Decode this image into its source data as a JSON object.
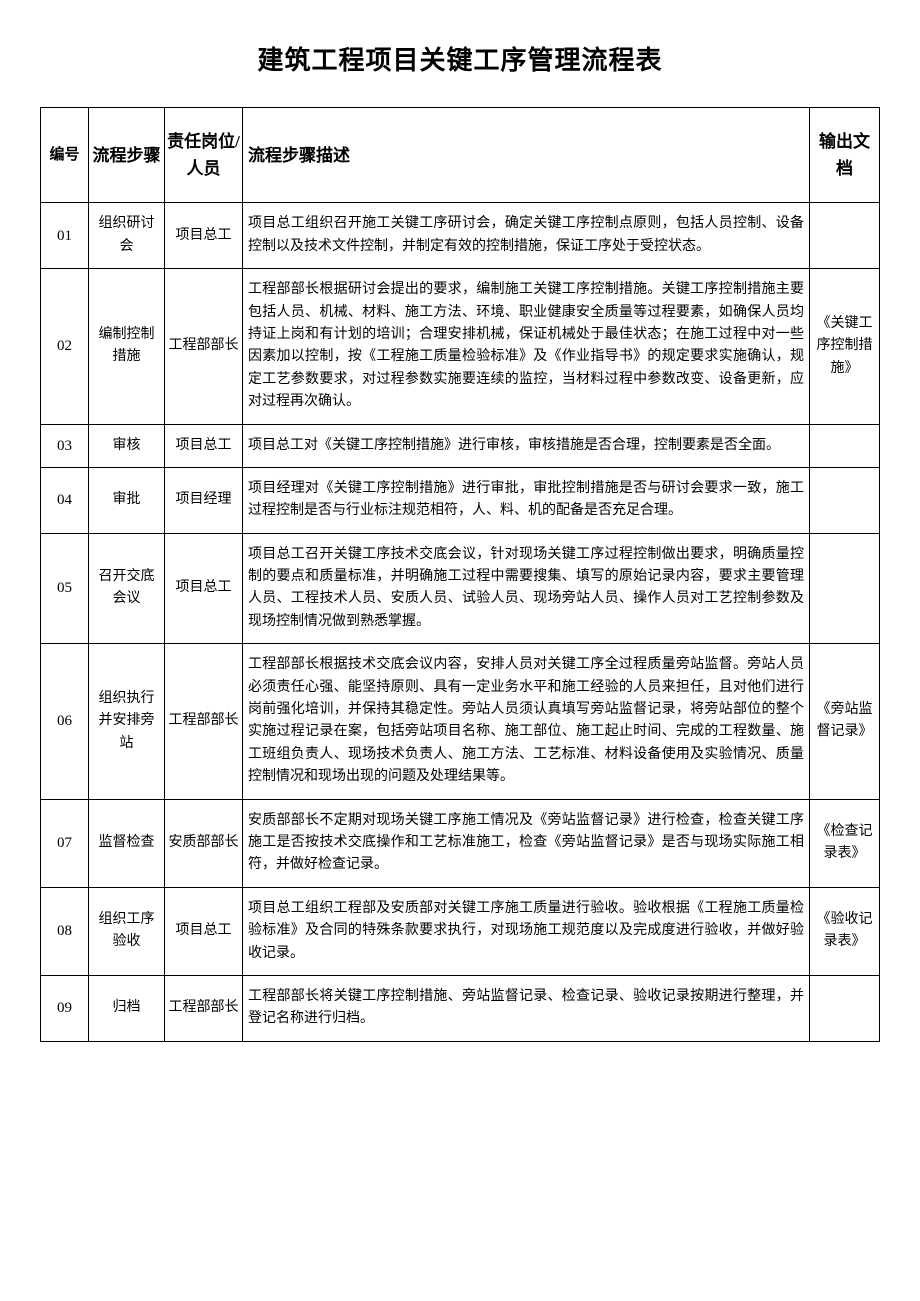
{
  "title": "建筑工程项目关键工序管理流程表",
  "columns": {
    "num": "编号",
    "step": "流程步骤",
    "role": "责任岗位/人员",
    "desc": "流程步骤描述",
    "output": "输出文档"
  },
  "rows": [
    {
      "num": "01",
      "step": "组织研讨会",
      "role": "项目总工",
      "desc": "项目总工组织召开施工关键工序研讨会，确定关键工序控制点原则，包括人员控制、设备控制以及技术文件控制，并制定有效的控制措施，保证工序处于受控状态。",
      "output": ""
    },
    {
      "num": "02",
      "step": "编制控制措施",
      "role": "工程部部长",
      "desc": "工程部部长根据研讨会提出的要求，编制施工关键工序控制措施。关键工序控制措施主要包括人员、机械、材料、施工方法、环境、职业健康安全质量等过程要素，如确保人员均持证上岗和有计划的培训；合理安排机械，保证机械处于最佳状态；在施工过程中对一些因素加以控制，按《工程施工质量检验标准》及《作业指导书》的规定要求实施确认，规定工艺参数要求，对过程参数实施要连续的监控，当材料过程中参数改变、设备更新，应对过程再次确认。",
      "output": "《关键工序控制措施》"
    },
    {
      "num": "03",
      "step": "审核",
      "role": "项目总工",
      "desc": "项目总工对《关键工序控制措施》进行审核，审核措施是否合理，控制要素是否全面。",
      "output": ""
    },
    {
      "num": "04",
      "step": "审批",
      "role": "项目经理",
      "desc": "项目经理对《关键工序控制措施》进行审批，审批控制措施是否与研讨会要求一致，施工过程控制是否与行业标注规范相符，人、料、机的配备是否充足合理。",
      "output": ""
    },
    {
      "num": "05",
      "step": "召开交底会议",
      "role": "项目总工",
      "desc": "项目总工召开关键工序技术交底会议，针对现场关键工序过程控制做出要求，明确质量控制的要点和质量标准，并明确施工过程中需要搜集、填写的原始记录内容，要求主要管理人员、工程技术人员、安质人员、试验人员、现场旁站人员、操作人员对工艺控制参数及现场控制情况做到熟悉掌握。",
      "output": ""
    },
    {
      "num": "06",
      "step": "组织执行并安排旁站",
      "role": "工程部部长",
      "desc": "工程部部长根据技术交底会议内容，安排人员对关键工序全过程质量旁站监督。旁站人员必须责任心强、能坚持原则、具有一定业务水平和施工经验的人员来担任，且对他们进行岗前强化培训，并保持其稳定性。旁站人员须认真填写旁站监督记录，将旁站部位的整个实施过程记录在案，包括旁站项目名称、施工部位、施工起止时间、完成的工程数量、施工班组负责人、现场技术负责人、施工方法、工艺标准、材料设备使用及实验情况、质量控制情况和现场出现的问题及处理结果等。",
      "output": "《旁站监督记录》"
    },
    {
      "num": "07",
      "step": "监督检查",
      "role": "安质部部长",
      "desc": "安质部部长不定期对现场关键工序施工情况及《旁站监督记录》进行检查，检查关键工序施工是否按技术交底操作和工艺标准施工，检查《旁站监督记录》是否与现场实际施工相符，并做好检查记录。",
      "output": "《检查记录表》"
    },
    {
      "num": "08",
      "step": "组织工序验收",
      "role": "项目总工",
      "desc": "项目总工组织工程部及安质部对关键工序施工质量进行验收。验收根据《工程施工质量检验标准》及合同的特殊条款要求执行，对现场施工规范度以及完成度进行验收，并做好验收记录。",
      "output": "《验收记录表》"
    },
    {
      "num": "09",
      "step": "归档",
      "role": "工程部部长",
      "desc": "工程部部长将关键工序控制措施、旁站监督记录、检查记录、验收记录按期进行整理，并登记名称进行归档。",
      "output": ""
    }
  ]
}
